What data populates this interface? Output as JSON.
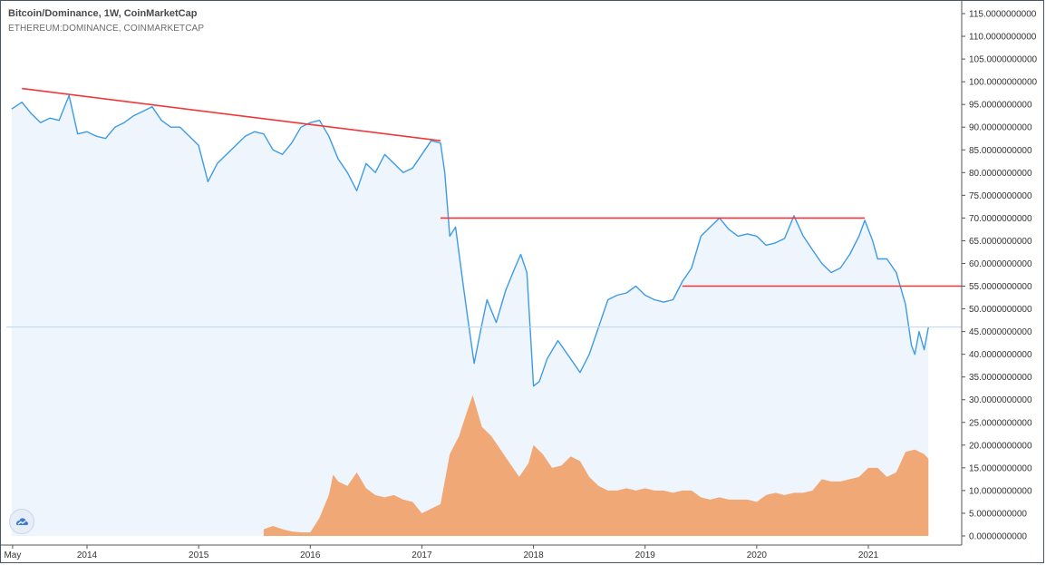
{
  "title": "Bitcoin/Dominance, 1W, CoinMarketCap",
  "subtitle": "ETHEREUM:DOMINANCE, COINMARKETCAP",
  "colors": {
    "btc_line": "#3d9be6",
    "btc_fill": "#eef5fd",
    "eth_fill": "#f0a876",
    "trendline": "#f0373a",
    "axis": "#555555"
  },
  "chart_data": {
    "type": "area",
    "x_axis": {
      "type": "time",
      "range": [
        "2013-04-28",
        "2021-12-31"
      ],
      "tick_labels": [
        "May",
        "2014",
        "2015",
        "2016",
        "2017",
        "2018",
        "2019",
        "2020",
        "2021"
      ]
    },
    "y_axis": {
      "range": [
        0,
        115
      ],
      "position": "right",
      "tick_labels": [
        "0.0000000000",
        "5.0000000000",
        "10.0000000000",
        "15.0000000000",
        "20.0000000000",
        "25.0000000000",
        "30.0000000000",
        "35.0000000000",
        "40.0000000000",
        "45.0000000000",
        "50.0000000000",
        "55.0000000000",
        "60.0000000000",
        "65.0000000000",
        "70.0000000000",
        "75.0000000000",
        "80.0000000000",
        "85.0000000000",
        "90.0000000000",
        "95.0000000000",
        "100.0000000000",
        "105.0000000000",
        "110.0000000000",
        "115.0000000000"
      ]
    },
    "grid": false,
    "series": [
      {
        "type": "line-area",
        "points": [
          [
            "2013-04-28",
            94
          ],
          [
            "2013-06-01",
            95.5
          ],
          [
            "2013-07-01",
            93
          ],
          [
            "2013-08-01",
            91
          ],
          [
            "2013-09-01",
            92
          ],
          [
            "2013-10-01",
            91.5
          ],
          [
            "2013-11-03",
            97
          ],
          [
            "2013-12-01",
            88.5
          ],
          [
            "2014-01-01",
            89
          ],
          [
            "2014-02-01",
            88
          ],
          [
            "2014-03-01",
            87.5
          ],
          [
            "2014-04-01",
            90
          ],
          [
            "2014-05-01",
            91
          ],
          [
            "2014-06-01",
            92.5
          ],
          [
            "2014-07-01",
            93.5
          ],
          [
            "2014-08-01",
            94.5
          ],
          [
            "2014-09-01",
            91.5
          ],
          [
            "2014-10-01",
            90
          ],
          [
            "2014-11-01",
            90
          ],
          [
            "2014-12-01",
            88
          ],
          [
            "2015-01-01",
            86
          ],
          [
            "2015-02-01",
            78
          ],
          [
            "2015-03-01",
            82
          ],
          [
            "2015-04-01",
            84
          ],
          [
            "2015-05-01",
            86
          ],
          [
            "2015-06-01",
            88
          ],
          [
            "2015-07-01",
            89
          ],
          [
            "2015-08-01",
            88.5
          ],
          [
            "2015-09-01",
            85
          ],
          [
            "2015-10-01",
            84
          ],
          [
            "2015-11-01",
            86.5
          ],
          [
            "2015-12-01",
            90
          ],
          [
            "2016-01-01",
            91
          ],
          [
            "2016-02-01",
            91.5
          ],
          [
            "2016-03-01",
            88
          ],
          [
            "2016-04-01",
            83
          ],
          [
            "2016-05-01",
            80
          ],
          [
            "2016-06-01",
            76
          ],
          [
            "2016-07-01",
            82
          ],
          [
            "2016-08-01",
            80
          ],
          [
            "2016-09-01",
            84
          ],
          [
            "2016-10-01",
            82
          ],
          [
            "2016-11-01",
            80
          ],
          [
            "2016-12-01",
            81
          ],
          [
            "2017-01-01",
            84
          ],
          [
            "2017-02-01",
            87
          ],
          [
            "2017-03-01",
            86.5
          ],
          [
            "2017-03-15",
            80
          ],
          [
            "2017-04-01",
            66
          ],
          [
            "2017-04-20",
            68
          ],
          [
            "2017-05-15",
            55
          ],
          [
            "2017-06-01",
            47
          ],
          [
            "2017-06-20",
            38
          ],
          [
            "2017-07-10",
            45
          ],
          [
            "2017-08-01",
            52
          ],
          [
            "2017-09-01",
            47
          ],
          [
            "2017-10-01",
            54
          ],
          [
            "2017-11-01",
            59
          ],
          [
            "2017-11-20",
            62
          ],
          [
            "2017-12-10",
            58
          ],
          [
            "2018-01-01",
            33
          ],
          [
            "2018-01-20",
            34
          ],
          [
            "2018-02-15",
            39
          ],
          [
            "2018-03-20",
            43
          ],
          [
            "2018-05-01",
            39
          ],
          [
            "2018-06-01",
            36
          ],
          [
            "2018-07-01",
            40
          ],
          [
            "2018-08-01",
            46
          ],
          [
            "2018-09-01",
            52
          ],
          [
            "2018-10-01",
            53
          ],
          [
            "2018-11-01",
            53.5
          ],
          [
            "2018-12-01",
            55
          ],
          [
            "2019-01-01",
            53
          ],
          [
            "2019-02-01",
            52
          ],
          [
            "2019-03-01",
            51.5
          ],
          [
            "2019-04-01",
            52
          ],
          [
            "2019-05-01",
            56
          ],
          [
            "2019-06-01",
            59
          ],
          [
            "2019-07-01",
            66
          ],
          [
            "2019-08-01",
            68
          ],
          [
            "2019-09-01",
            70
          ],
          [
            "2019-10-01",
            67.5
          ],
          [
            "2019-11-01",
            66
          ],
          [
            "2019-12-01",
            66.5
          ],
          [
            "2020-01-01",
            66
          ],
          [
            "2020-02-01",
            64
          ],
          [
            "2020-03-01",
            64.5
          ],
          [
            "2020-04-01",
            65.5
          ],
          [
            "2020-05-01",
            70.5
          ],
          [
            "2020-06-01",
            66
          ],
          [
            "2020-07-01",
            63
          ],
          [
            "2020-08-01",
            60
          ],
          [
            "2020-09-01",
            58
          ],
          [
            "2020-10-01",
            59
          ],
          [
            "2020-11-01",
            62
          ],
          [
            "2020-12-01",
            66
          ],
          [
            "2020-12-20",
            69.5
          ],
          [
            "2021-01-15",
            65
          ],
          [
            "2021-02-01",
            61
          ],
          [
            "2021-03-01",
            61
          ],
          [
            "2021-04-01",
            58
          ],
          [
            "2021-05-01",
            51
          ],
          [
            "2021-05-20",
            42
          ],
          [
            "2021-06-01",
            40
          ],
          [
            "2021-06-15",
            45
          ],
          [
            "2021-07-01",
            41
          ],
          [
            "2021-07-15",
            46
          ]
        ]
      },
      {
        "type": "area",
        "points": [
          [
            "2015-08-01",
            1.5
          ],
          [
            "2015-09-01",
            2.2
          ],
          [
            "2015-10-01",
            1.5
          ],
          [
            "2015-11-01",
            1
          ],
          [
            "2015-12-01",
            0.8
          ],
          [
            "2016-01-01",
            0.8
          ],
          [
            "2016-02-01",
            4
          ],
          [
            "2016-03-01",
            9
          ],
          [
            "2016-03-15",
            13.5
          ],
          [
            "2016-04-01",
            12
          ],
          [
            "2016-05-01",
            11
          ],
          [
            "2016-06-01",
            14
          ],
          [
            "2016-07-01",
            10.5
          ],
          [
            "2016-08-01",
            9
          ],
          [
            "2016-09-01",
            8.5
          ],
          [
            "2016-10-01",
            9
          ],
          [
            "2016-11-01",
            8
          ],
          [
            "2016-12-01",
            7.5
          ],
          [
            "2017-01-01",
            5
          ],
          [
            "2017-02-01",
            6
          ],
          [
            "2017-03-01",
            7
          ],
          [
            "2017-04-01",
            18
          ],
          [
            "2017-05-01",
            22
          ],
          [
            "2017-05-20",
            26
          ],
          [
            "2017-06-15",
            31
          ],
          [
            "2017-07-15",
            24
          ],
          [
            "2017-08-15",
            22
          ],
          [
            "2017-09-15",
            19
          ],
          [
            "2017-10-15",
            16
          ],
          [
            "2017-11-15",
            13
          ],
          [
            "2017-12-15",
            16
          ],
          [
            "2018-01-01",
            20
          ],
          [
            "2018-02-01",
            18
          ],
          [
            "2018-03-01",
            15
          ],
          [
            "2018-04-01",
            15.5
          ],
          [
            "2018-05-01",
            17.5
          ],
          [
            "2018-06-01",
            16.5
          ],
          [
            "2018-07-01",
            13
          ],
          [
            "2018-08-01",
            11
          ],
          [
            "2018-09-01",
            10
          ],
          [
            "2018-10-01",
            10
          ],
          [
            "2018-11-01",
            10.5
          ],
          [
            "2018-12-01",
            10
          ],
          [
            "2019-01-01",
            10.5
          ],
          [
            "2019-02-01",
            10
          ],
          [
            "2019-03-01",
            10
          ],
          [
            "2019-04-01",
            9.5
          ],
          [
            "2019-05-01",
            10
          ],
          [
            "2019-06-01",
            10
          ],
          [
            "2019-07-01",
            8.5
          ],
          [
            "2019-08-01",
            8
          ],
          [
            "2019-09-01",
            8.5
          ],
          [
            "2019-10-01",
            8
          ],
          [
            "2019-11-01",
            8
          ],
          [
            "2019-12-01",
            8
          ],
          [
            "2020-01-01",
            7.5
          ],
          [
            "2020-02-01",
            9
          ],
          [
            "2020-03-01",
            9.5
          ],
          [
            "2020-04-01",
            9
          ],
          [
            "2020-05-01",
            9.5
          ],
          [
            "2020-06-01",
            9.5
          ],
          [
            "2020-07-01",
            10
          ],
          [
            "2020-08-01",
            12.5
          ],
          [
            "2020-09-01",
            12
          ],
          [
            "2020-10-01",
            12
          ],
          [
            "2020-11-01",
            12.5
          ],
          [
            "2020-12-01",
            13
          ],
          [
            "2021-01-01",
            15
          ],
          [
            "2021-02-01",
            15
          ],
          [
            "2021-03-01",
            13
          ],
          [
            "2021-04-01",
            14
          ],
          [
            "2021-05-01",
            18.5
          ],
          [
            "2021-06-01",
            19
          ],
          [
            "2021-07-01",
            18
          ],
          [
            "2021-07-15",
            17
          ]
        ]
      }
    ],
    "annotations": [
      {
        "type": "trendline",
        "from": [
          "2013-06-01",
          98.5
        ],
        "to": [
          "2017-03-01",
          87
        ]
      },
      {
        "type": "trendline",
        "from": [
          "2017-03-01",
          70
        ],
        "to": [
          "2020-12-20",
          70
        ]
      },
      {
        "type": "trendline",
        "from": [
          "2019-05-01",
          55
        ],
        "to": [
          "2021-12-31",
          55
        ]
      },
      {
        "type": "price-line",
        "y": 46
      }
    ]
  }
}
